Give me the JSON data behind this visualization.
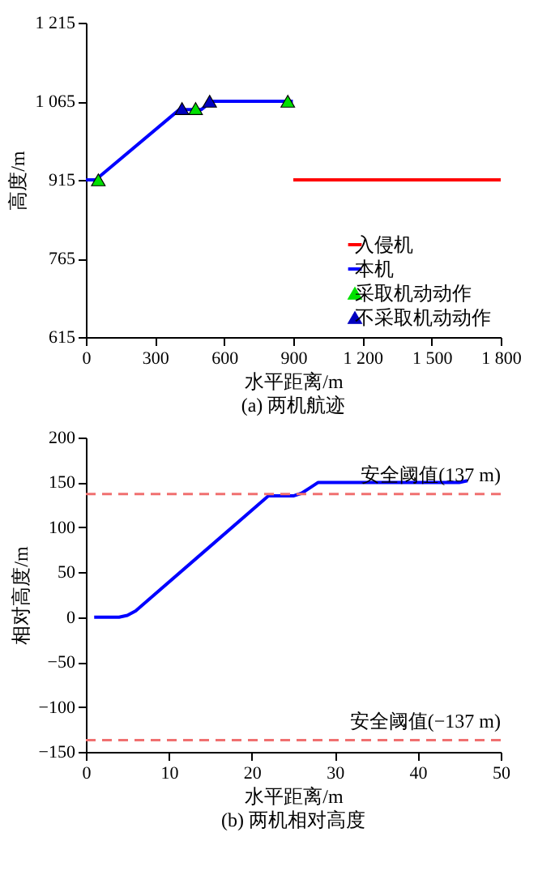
{
  "chart_data": [
    {
      "type": "line",
      "title": "(a)    两机航迹",
      "xlabel": "水平距离/m",
      "ylabel": "高度/m",
      "xlim": [
        0,
        1800
      ],
      "xticks": [
        0,
        300,
        600,
        900,
        {
          "value": 1200,
          "label": "1 200"
        },
        {
          "value": 1500,
          "label": "1 500"
        },
        {
          "value": 1800,
          "label": "1 800"
        }
      ],
      "ylim": [
        615,
        1215
      ],
      "yticks": [
        615,
        765,
        915,
        {
          "value": 1065,
          "label": "1 065"
        },
        {
          "value": 1215,
          "label": "1 215"
        }
      ],
      "grid": false,
      "legend": "bottom right",
      "series": [
        {
          "name": "入侵机",
          "color": "#ff0000",
          "x": [
            900,
            1800
          ],
          "values": [
            915,
            915
          ]
        },
        {
          "name": "本机",
          "color": "#0000ff",
          "x": [
            0,
            42,
            405,
            500,
            546,
            898
          ],
          "values": [
            915,
            915,
            1049,
            1049,
            1065,
            1065
          ]
        },
        {
          "name": "采取机动动作",
          "type": "scatter",
          "marker": "triangle",
          "color": "#00e000",
          "x": [
            54,
            476,
            876
          ],
          "values": [
            915,
            1051,
            1065
          ]
        },
        {
          "name": "不采取机动动作",
          "type": "scatter",
          "marker": "triangle",
          "color": "#0000c0",
          "x": [
            417,
            537
          ],
          "values": [
            1051,
            1065
          ]
        }
      ]
    },
    {
      "type": "line",
      "title": "(b)    两机相对高度",
      "xlabel": "水平距离/m",
      "ylabel": "相对高度/m",
      "xlim": [
        0,
        50
      ],
      "xticks": [
        0,
        10,
        20,
        30,
        40,
        50
      ],
      "ylim": [
        -150,
        200
      ],
      "yticks": [
        {
          "value": -150,
          "label": "−150"
        },
        {
          "value": -100,
          "label": "−100"
        },
        {
          "value": -50,
          "label": "−50"
        },
        0,
        50,
        100,
        150,
        200
      ],
      "grid": false,
      "legend": false,
      "series": [
        {
          "color": "#0000ff",
          "x": [
            1,
            4,
            5,
            6,
            22,
            25,
            26,
            27,
            28,
            45,
            46
          ],
          "values": [
            0,
            0,
            2,
            7,
            135,
            135,
            138,
            144,
            150,
            150,
            152
          ]
        }
      ],
      "ref_lines": [
        {
          "axis": "y",
          "value": 137,
          "label": "安全阈值(137 m)",
          "color": "#f07070",
          "line_style": "dashed"
        },
        {
          "axis": "y",
          "value": -137,
          "label": "安全阈值(−137 m)",
          "color": "#f07070",
          "line_style": "dashed"
        }
      ]
    }
  ]
}
